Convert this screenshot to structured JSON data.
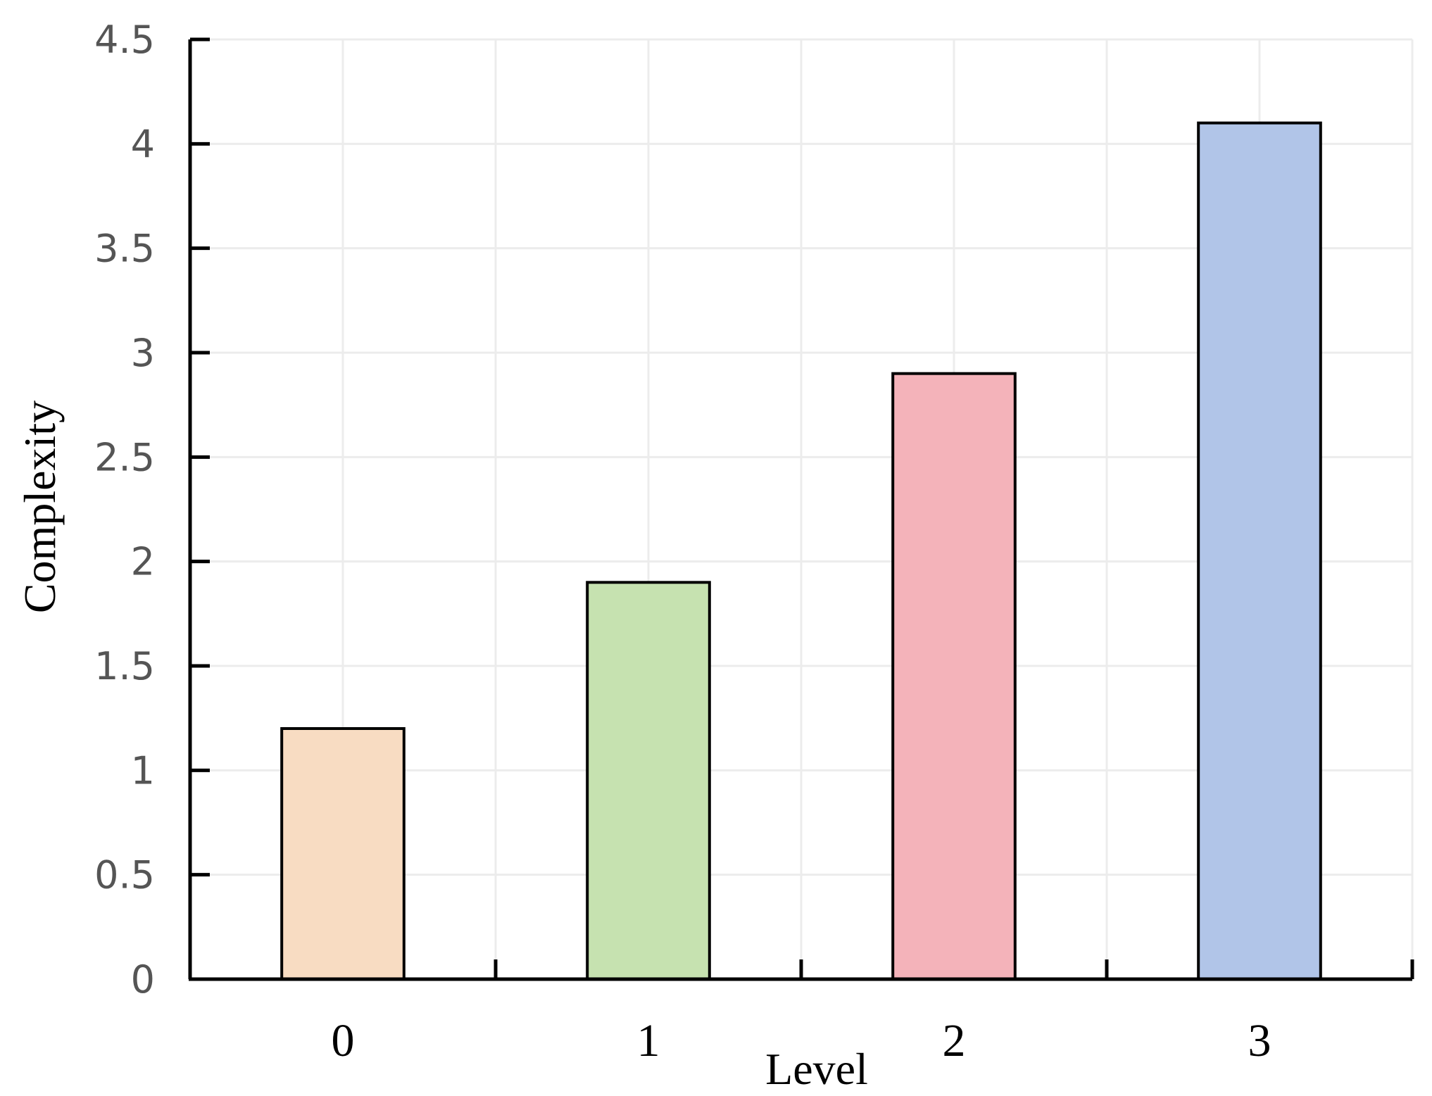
{
  "chart_data": {
    "type": "bar",
    "categories": [
      "0",
      "1",
      "2",
      "3"
    ],
    "values": [
      1.2,
      1.9,
      2.9,
      4.1
    ],
    "xlabel": "Level",
    "ylabel": "Complexity",
    "ylim": [
      0,
      4.5
    ],
    "yticks": [
      "0",
      "0.5",
      "1",
      "1.5",
      "2",
      "2.5",
      "3",
      "3.5",
      "4",
      "4.5"
    ],
    "grid": true,
    "legend": "none",
    "bar_colors": [
      "#f8dcc2",
      "#c6e2b0",
      "#f4b3ba",
      "#b1c5e8"
    ],
    "bar_edge_color": "#000000",
    "grid_color": "#ececec"
  }
}
